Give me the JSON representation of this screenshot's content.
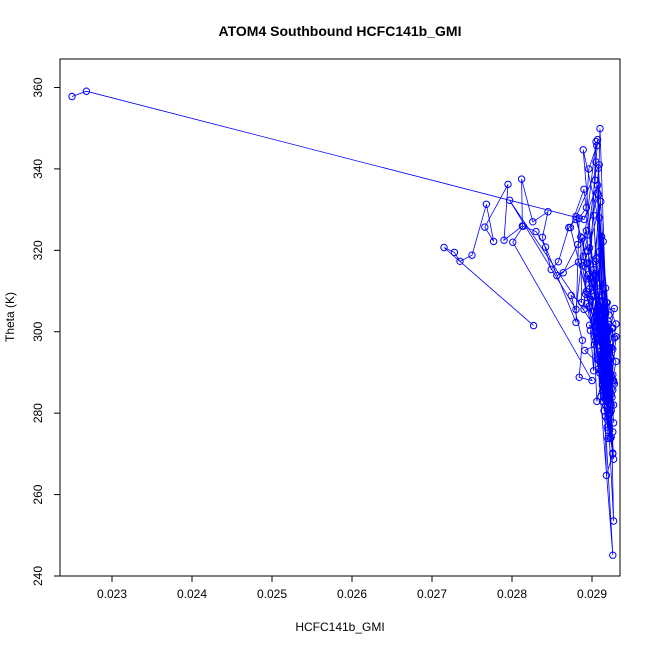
{
  "chart_data": {
    "type": "scatter",
    "title": "ATOM4 Southbound HCFC141b_GMI",
    "xlabel": "HCFC141b_GMI",
    "ylabel": "Theta (K)",
    "xlim": [
      0.02235,
      0.02935
    ],
    "ylim": [
      240,
      367
    ],
    "xticks": [
      "0.023",
      "0.024",
      "0.025",
      "0.026",
      "0.027",
      "0.028",
      "0.029"
    ],
    "xtick_values": [
      0.023,
      0.024,
      0.025,
      0.026,
      0.027,
      0.028,
      0.029
    ],
    "yticks": [
      "240",
      "260",
      "280",
      "300",
      "320",
      "340",
      "360"
    ],
    "ytick_values": [
      240,
      260,
      280,
      300,
      320,
      340,
      360
    ],
    "grid": false,
    "series_color": "#0000ff",
    "marker": "open-circle",
    "connected": true,
    "series": [
      {
        "points": [
          [
            0.0225,
            357.8
          ],
          [
            0.02268,
            359.1
          ],
          [
            0.0289,
            327.6
          ],
          [
            0.02907,
            336.0
          ],
          [
            0.0292,
            300.9
          ],
          [
            0.02898,
            313.2
          ],
          [
            0.0288,
            328.3
          ],
          [
            0.02909,
            341.0
          ],
          [
            0.02895,
            316.9
          ],
          [
            0.02913,
            298.5
          ],
          [
            0.02797,
            332.3
          ],
          [
            0.0288,
            305.5
          ],
          [
            0.02905,
            346.7
          ],
          [
            0.02897,
            310.6
          ],
          [
            0.02924,
            282.0
          ],
          [
            0.02912,
            297.3
          ],
          [
            0.0289,
            335.0
          ],
          [
            0.02873,
            325.6
          ],
          [
            0.02913,
            294.1
          ],
          [
            0.02925,
            301.0
          ],
          [
            0.02908,
            290.8
          ],
          [
            0.02893,
            324.8
          ],
          [
            0.02908,
            333.6
          ],
          [
            0.0292,
            294.7
          ],
          [
            0.02909,
            319.7
          ],
          [
            0.02927,
            277.6
          ],
          [
            0.02914,
            322.2
          ],
          [
            0.02889,
            344.7
          ],
          [
            0.02913,
            288.2
          ],
          [
            0.02893,
            309.9
          ],
          [
            0.0293,
            292.7
          ],
          [
            0.02917,
            279.2
          ],
          [
            0.0291,
            299.5
          ],
          [
            0.02897,
            301.6
          ],
          [
            0.02924,
            284.6
          ],
          [
            0.02909,
            307.4
          ],
          [
            0.02905,
            313.6
          ],
          [
            0.02897,
            320.6
          ],
          [
            0.02888,
            316.2
          ],
          [
            0.02926,
            270.2
          ],
          [
            0.02918,
            292.2
          ],
          [
            0.02918,
            298.0
          ],
          [
            0.02891,
            295.4
          ],
          [
            0.02924,
            289.2
          ],
          [
            0.02909,
            302.8
          ],
          [
            0.02903,
            296.8
          ],
          [
            0.02906,
            282.9
          ],
          [
            0.02917,
            291.7
          ],
          [
            0.02927,
            253.5
          ],
          [
            0.02924,
            280.6
          ],
          [
            0.0292,
            291.9
          ],
          [
            0.0291,
            349.9
          ],
          [
            0.02902,
            290.4
          ],
          [
            0.02898,
            300.3
          ],
          [
            0.02913,
            286.8
          ],
          [
            0.02902,
            328.6
          ],
          [
            0.02926,
            245.1
          ],
          [
            0.02907,
            293.2
          ],
          [
            0.0292,
            275.8
          ],
          [
            0.0292,
            302.7
          ],
          [
            0.02909,
            305.3
          ],
          [
            0.02928,
            305.7
          ],
          [
            0.02914,
            291.7
          ],
          [
            0.02901,
            308.6
          ],
          [
            0.02917,
            304.6
          ],
          [
            0.02904,
            317.3
          ],
          [
            0.02924,
            296.1
          ],
          [
            0.02922,
            287.8
          ],
          [
            0.02916,
            296.0
          ],
          [
            0.02892,
            309.2
          ],
          [
            0.02913,
            300.9
          ],
          [
            0.02921,
            304.1
          ],
          [
            0.02912,
            323.4
          ],
          [
            0.02923,
            293.8
          ],
          [
            0.02915,
            297.6
          ],
          [
            0.02896,
            306.2
          ],
          [
            0.02911,
            332.0
          ],
          [
            0.02895,
            319.8
          ],
          [
            0.02917,
            294.1
          ],
          [
            0.02905,
            298.0
          ],
          [
            0.02913,
            305.6
          ],
          [
            0.02927,
            287.6
          ],
          [
            0.029,
            311.9
          ],
          [
            0.02912,
            303.9
          ],
          [
            0.02923,
            273.8
          ],
          [
            0.02926,
            300.9
          ],
          [
            0.02914,
            285.7
          ],
          [
            0.02902,
            315.3
          ],
          [
            0.02919,
            285.4
          ],
          [
            0.0293,
            301.9
          ],
          [
            0.0291,
            311.9
          ],
          [
            0.02908,
            340.2
          ],
          [
            0.02922,
            296.0
          ],
          [
            0.02903,
            305.0
          ],
          [
            0.02926,
            289.4
          ],
          [
            0.02893,
            306.9
          ],
          [
            0.02913,
            289.4
          ],
          [
            0.02911,
            284.1
          ],
          [
            0.02911,
            300.2
          ],
          [
            0.02919,
            293.1
          ],
          [
            0.02905,
            301.8
          ],
          [
            0.02905,
            318.0
          ],
          [
            0.02921,
            300.4
          ],
          [
            0.02909,
            301.8
          ],
          [
            0.02919,
            307.1
          ],
          [
            0.02924,
            285.9
          ],
          [
            0.02906,
            300.9
          ],
          [
            0.02918,
            307.2
          ],
          [
            0.02915,
            280.6
          ],
          [
            0.02928,
            298.5
          ],
          [
            0.02914,
            304.8
          ],
          [
            0.02926,
            288.0
          ],
          [
            0.02922,
            280.1
          ],
          [
            0.02916,
            290.4
          ],
          [
            0.02921,
            283.7
          ],
          [
            0.02909,
            309.8
          ],
          [
            0.02916,
            299.5
          ],
          [
            0.02907,
            334.0
          ],
          [
            0.02911,
            291.7
          ],
          [
            0.02917,
            310.7
          ],
          [
            0.02913,
            305.7
          ],
          [
            0.02913,
            294.8
          ],
          [
            0.0292,
            293.0
          ],
          [
            0.02918,
            292.0
          ],
          [
            0.02918,
            297.9
          ],
          [
            0.02908,
            298.8
          ],
          [
            0.0292,
            300.8
          ],
          [
            0.02916,
            286.3
          ],
          [
            0.02912,
            308.8
          ],
          [
            0.02922,
            289.6
          ],
          [
            0.02911,
            298.0
          ],
          [
            0.02927,
            268.7
          ],
          [
            0.0292,
            296.2
          ],
          [
            0.02914,
            300.4
          ],
          [
            0.02917,
            295.6
          ],
          [
            0.0291,
            292.6
          ],
          [
            0.02921,
            286.9
          ],
          [
            0.02909,
            301.0
          ],
          [
            0.02907,
            304.9
          ],
          [
            0.02924,
            274.1
          ],
          [
            0.02902,
            302.9
          ],
          [
            0.02919,
            299.4
          ],
          [
            0.02917,
            304.9
          ],
          [
            0.02915,
            293.2
          ],
          [
            0.02927,
            288.0
          ],
          [
            0.02906,
            305.2
          ],
          [
            0.02916,
            300.1
          ],
          [
            0.02919,
            276.6
          ],
          [
            0.0293,
            298.8
          ],
          [
            0.02907,
            298.5
          ],
          [
            0.02921,
            289.6
          ],
          [
            0.02913,
            301.3
          ],
          [
            0.02917,
            282.0
          ],
          [
            0.02916,
            302.7
          ],
          [
            0.02928,
            287.2
          ],
          [
            0.02916,
            297.3
          ],
          [
            0.02904,
            314.2
          ],
          [
            0.02913,
            287.2
          ],
          [
            0.02918,
            301.4
          ],
          [
            0.02921,
            285.0
          ],
          [
            0.02906,
            302.5
          ],
          [
            0.02919,
            284.1
          ],
          [
            0.02908,
            293.3
          ],
          [
            0.02913,
            289.0
          ],
          [
            0.02918,
            287.1
          ],
          [
            0.0291,
            296.6
          ],
          [
            0.02926,
            275.4
          ],
          [
            0.02919,
            295.4
          ],
          [
            0.02915,
            289.2
          ],
          [
            0.02909,
            328.0
          ],
          [
            0.02922,
            288.0
          ],
          [
            0.02917,
            300.4
          ],
          [
            0.02916,
            283.6
          ],
          [
            0.02921,
            301.8
          ],
          [
            0.02912,
            304.6
          ],
          [
            0.0292,
            294.8
          ],
          [
            0.02913,
            282.9
          ],
          [
            0.02916,
            296.6
          ],
          [
            0.02926,
            285.7
          ],
          [
            0.02917,
            289.3
          ],
          [
            0.02921,
            296.1
          ],
          [
            0.02909,
            309.0
          ],
          [
            0.02915,
            298.4
          ],
          [
            0.02919,
            278.5
          ],
          [
            0.02926,
            295.7
          ],
          [
            0.02911,
            290.6
          ],
          [
            0.02917,
            293.6
          ],
          [
            0.0292,
            273.8
          ],
          [
            0.02927,
            282.0
          ],
          [
            0.02922,
            291.5
          ],
          [
            0.02915,
            283.9
          ],
          [
            0.02914,
            288.4
          ],
          [
            0.02922,
            285.6
          ],
          [
            0.02919,
            295.1
          ],
          [
            0.02925,
            283.9
          ],
          [
            0.02923,
            280.1
          ],
          [
            0.0291,
            289.8
          ],
          [
            0.02915,
            290.5
          ],
          [
            0.02918,
            264.7
          ],
          [
            0.02926,
            270.0
          ]
        ]
      },
      {
        "points": [
          [
            0.02827,
            301.5
          ],
          [
            0.02715,
            320.7
          ],
          [
            0.02728,
            319.5
          ],
          [
            0.02735,
            317.3
          ],
          [
            0.0275,
            318.8
          ],
          [
            0.02768,
            331.3
          ],
          [
            0.02777,
            322.2
          ],
          [
            0.02766,
            325.7
          ],
          [
            0.02795,
            336.2
          ],
          [
            0.0279,
            322.5
          ],
          [
            0.02813,
            326.0
          ],
          [
            0.02812,
            337.5
          ],
          [
            0.02826,
            327.0
          ],
          [
            0.02845,
            329.5
          ],
          [
            0.02838,
            323.2
          ],
          [
            0.02849,
            315.3
          ],
          [
            0.02858,
            317.2
          ],
          [
            0.02871,
            325.6
          ],
          [
            0.0288,
            327.6
          ],
          [
            0.02886,
            323.3
          ],
          [
            0.02887,
            307.2
          ],
          [
            0.02874,
            308.9
          ],
          [
            0.02888,
            297.9
          ],
          [
            0.02884,
            288.8
          ],
          [
            0.029,
            288.0
          ],
          [
            0.02801,
            322.0
          ],
          [
            0.02814,
            325.9
          ],
          [
            0.0283,
            324.6
          ],
          [
            0.02842,
            320.8
          ],
          [
            0.0288,
            302.3
          ],
          [
            0.02884,
            327.9
          ],
          [
            0.02893,
            330.5
          ],
          [
            0.02896,
            340.0
          ],
          [
            0.02906,
            345.7
          ],
          [
            0.02907,
            347.2
          ],
          [
            0.02905,
            341.7
          ],
          [
            0.02904,
            337.2
          ],
          [
            0.02895,
            323.8
          ],
          [
            0.02889,
            318.5
          ],
          [
            0.02893,
            313.0
          ],
          [
            0.0289,
            305.5
          ],
          [
            0.02893,
            316.7
          ],
          [
            0.02888,
            323.0
          ],
          [
            0.02882,
            321.4
          ],
          [
            0.02864,
            314.5
          ],
          [
            0.02856,
            313.8
          ],
          [
            0.02883,
            317.1
          ],
          [
            0.02895,
            314.0
          ],
          [
            0.02898,
            308.0
          ],
          [
            0.02899,
            312.9
          ]
        ]
      }
    ]
  }
}
